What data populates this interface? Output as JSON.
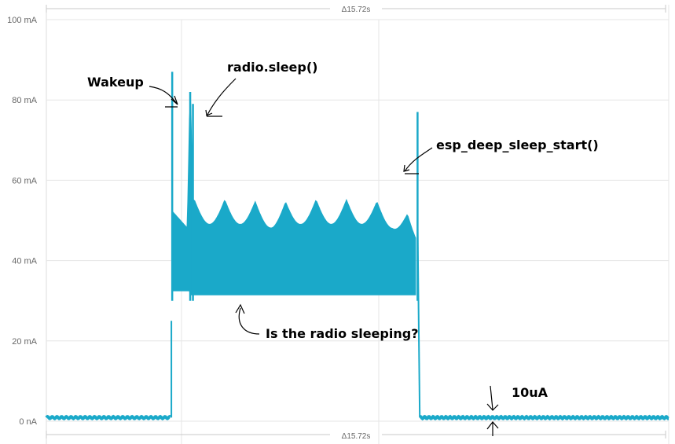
{
  "chart_data": {
    "type": "line",
    "title": "",
    "xlabel": "",
    "ylabel": "",
    "ylim": [
      0,
      100
    ],
    "y_ticks": [
      "0 nA",
      "20 mA",
      "40 mA",
      "60 mA",
      "80 mA",
      "100 mA"
    ],
    "y_tick_values": [
      0,
      20,
      40,
      60,
      80,
      100
    ],
    "grid": true,
    "selection": {
      "label": "Δ15.72s",
      "duration_s": 15.72
    },
    "series": [
      {
        "color": "#1aa9c9",
        "unit": "mA",
        "points": [
          {
            "t": 0.0,
            "value": 0.9
          },
          {
            "t": 4.49,
            "value": 0.9
          },
          {
            "t": 4.52,
            "value": 20
          },
          {
            "t": 4.55,
            "value": 87
          },
          {
            "t": 4.58,
            "value": 52
          },
          {
            "t": 5.1,
            "value": 48
          },
          {
            "t": 5.2,
            "value": 82
          },
          {
            "t": 5.3,
            "value": 55
          },
          {
            "t": 7.0,
            "value": 55
          },
          {
            "t": 8.2,
            "value": 54
          },
          {
            "t": 9.2,
            "value": 55
          },
          {
            "t": 10.4,
            "value": 55
          },
          {
            "t": 11.5,
            "value": 55
          },
          {
            "t": 12.5,
            "value": 54
          },
          {
            "t": 13.35,
            "value": 50
          },
          {
            "t": 13.42,
            "value": 77
          },
          {
            "t": 13.5,
            "value": 0.9
          },
          {
            "t": 22.5,
            "value": 0.9
          }
        ],
        "band_floor_mA": 31.5,
        "baseline_mA": 0.9
      }
    ],
    "annotations": [
      {
        "text": "Wakeup"
      },
      {
        "text": "radio.sleep()"
      },
      {
        "text": "esp_deep_sleep_start()"
      },
      {
        "text": "Is the radio sleeping?"
      },
      {
        "text": "10uA"
      }
    ]
  }
}
